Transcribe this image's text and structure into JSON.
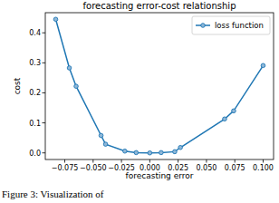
{
  "chart_data": {
    "type": "line",
    "title": "forecasting error-cost relationship",
    "x_label": "forecasting error",
    "y_label": "cost",
    "caption": "Figure 3: Visualization of",
    "x": [
      -0.083,
      -0.071,
      -0.065,
      -0.043,
      -0.039,
      -0.022,
      -0.012,
      0.0,
      0.01,
      0.022,
      0.027,
      0.066,
      0.074,
      0.1
    ],
    "series": [
      {
        "name": "loss function",
        "color": "#1f77b4",
        "marker": "circle",
        "line_style": "solid",
        "values": [
          0.445,
          0.283,
          0.222,
          0.058,
          0.029,
          0.006,
          0.001,
          0.0,
          0.001,
          0.004,
          0.018,
          0.113,
          0.14,
          0.291
        ]
      }
    ],
    "xlim": [
      -0.0922,
      0.1092
    ],
    "xticks": [
      {
        "value": -0.075,
        "label": "−0.075"
      },
      {
        "value": -0.05,
        "label": "−0.050"
      },
      {
        "value": -0.025,
        "label": "−0.025"
      },
      {
        "value": 0,
        "label": "0.000"
      },
      {
        "value": 0.025,
        "label": "0.025"
      },
      {
        "value": 0.05,
        "label": "0.050"
      },
      {
        "value": 0.075,
        "label": "0.075"
      },
      {
        "value": 0.1,
        "label": "0.100"
      }
    ],
    "ylim": [
      -0.022,
      0.467
    ],
    "yticks": [
      {
        "value": 0,
        "label": "0.0"
      },
      {
        "value": 0.1,
        "label": "0.1"
      },
      {
        "value": 0.2,
        "label": "0.2"
      },
      {
        "value": 0.3,
        "label": "0.3"
      },
      {
        "value": 0.4,
        "label": "0.4"
      }
    ],
    "grid": false,
    "legend": "upper right"
  }
}
